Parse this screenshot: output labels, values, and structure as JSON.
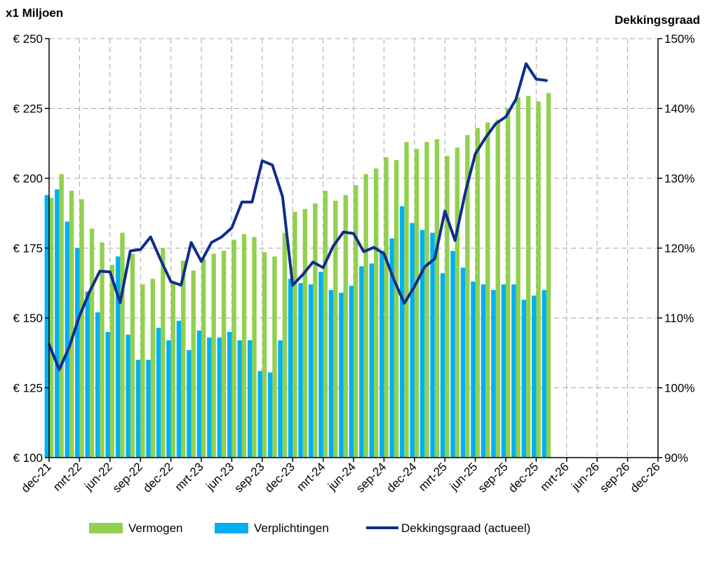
{
  "chart_data": {
    "type": "bar",
    "left_axis_unit": "x1 Miljoen",
    "right_axis_unit": "Dekkingsgraad",
    "ylim": [
      100,
      250
    ],
    "y_ticks": [
      100,
      125,
      150,
      175,
      200,
      225,
      250
    ],
    "y_tick_labels": [
      "€ 100",
      "€ 125",
      "€ 150",
      "€ 175",
      "€ 200",
      "€ 225",
      "€ 250"
    ],
    "y2lim": [
      90,
      150
    ],
    "y2_ticks": [
      90,
      100,
      110,
      120,
      130,
      140,
      150
    ],
    "y2_tick_labels": [
      "90%",
      "100%",
      "110%",
      "120%",
      "130%",
      "140%",
      "150%"
    ],
    "x_range": [
      "2021-12",
      "2026-12"
    ],
    "x_tick_labels": [
      "dec-21",
      "mrt-22",
      "jun-22",
      "sep-22",
      "dec-22",
      "mrt-23",
      "jun-23",
      "sep-23",
      "dec-23",
      "mrt-24",
      "jun-24",
      "sep-24",
      "dec-24",
      "mrt-25",
      "jun-25",
      "sep-25",
      "dec-25",
      "mrt-26",
      "jun-26",
      "sep-26",
      "dec-26"
    ],
    "grid": true,
    "legend_position": "bottom",
    "months": [
      "2021-12",
      "2022-01",
      "2022-02",
      "2022-03",
      "2022-04",
      "2022-05",
      "2022-06",
      "2022-07",
      "2022-08",
      "2022-09",
      "2022-10",
      "2022-11",
      "2022-12",
      "2023-01",
      "2023-02",
      "2023-03",
      "2023-04",
      "2023-05",
      "2023-06",
      "2023-07",
      "2023-08",
      "2023-09",
      "2023-10",
      "2023-11",
      "2023-12",
      "2024-01",
      "2024-02",
      "2024-03",
      "2024-04",
      "2024-05",
      "2024-06",
      "2024-07",
      "2024-08",
      "2024-09",
      "2024-10",
      "2024-11",
      "2024-12",
      "2025-01",
      "2025-02",
      "2025-03",
      "2025-04",
      "2025-05",
      "2025-06",
      "2025-07",
      "2025-08",
      "2025-09",
      "2025-10",
      "2025-11",
      "2025-12",
      "2026-01"
    ],
    "series": [
      {
        "name": "Vermogen",
        "kind": "bar",
        "axis": "left",
        "color": "#92d050",
        "values": [
          193,
          201.5,
          195.5,
          192.5,
          182,
          177,
          169,
          180.5,
          173,
          162,
          164,
          175,
          162.5,
          170.5,
          167,
          171,
          173,
          174,
          178,
          180,
          179,
          173.5,
          172,
          180.5,
          188,
          189,
          191,
          195.5,
          192,
          194,
          197.5,
          201.5,
          203.5,
          207.5,
          206.5,
          213,
          210.5,
          213,
          214,
          208,
          211,
          215.5,
          218,
          220,
          221,
          225,
          229,
          229.5,
          227.5,
          230.5
        ]
      },
      {
        "name": "Verplichtingen",
        "kind": "bar",
        "axis": "left",
        "color": "#00b0f0",
        "values": [
          194,
          196,
          184.5,
          175,
          159.5,
          152,
          145,
          172,
          144,
          135,
          135,
          146.5,
          142,
          149,
          138.5,
          145.5,
          143,
          143,
          145,
          142,
          142,
          131,
          130.5,
          142,
          164,
          162.5,
          162,
          166.5,
          160,
          159,
          161.5,
          168.5,
          169.5,
          174,
          178.5,
          190,
          184,
          181.5,
          180.5,
          166,
          174,
          168,
          163,
          162,
          160,
          162,
          162,
          156.5,
          158,
          160
        ]
      },
      {
        "name": "Dekkingsgraad (actueel)",
        "kind": "line",
        "axis": "right",
        "color": "#0f2d8c",
        "values": [
          106.2,
          102.6,
          105.9,
          110.3,
          113.8,
          116.7,
          116.6,
          112.2,
          119.6,
          119.8,
          121.6,
          118.3,
          115.2,
          114.7,
          120.8,
          118.1,
          120.8,
          121.6,
          122.9,
          126.6,
          126.6,
          132.5,
          131.9,
          127.4,
          114.7,
          116.2,
          118,
          117.2,
          120.3,
          122.3,
          122.1,
          119.5,
          120.1,
          119.2,
          115.4,
          112.1,
          114.5,
          117.3,
          118.5,
          125.3,
          121.1,
          127.9,
          133.5,
          135.8,
          137.8,
          138.8,
          141.3,
          146.4,
          144.2,
          144
        ]
      }
    ]
  }
}
